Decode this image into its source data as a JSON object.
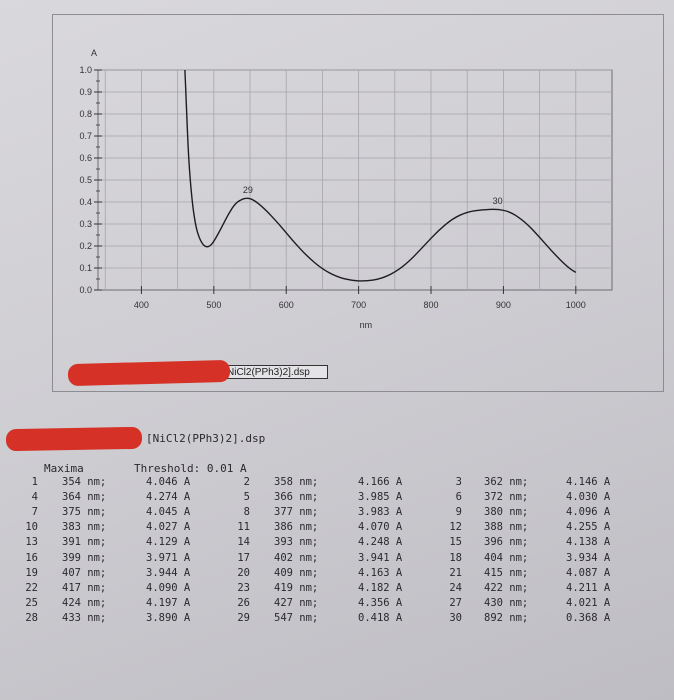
{
  "chart_data": {
    "type": "line",
    "xlabel": "nm",
    "ylabel": "A",
    "xlim": [
      340,
      1050
    ],
    "ylim": [
      0,
      1.0
    ],
    "x_ticks": [
      400,
      500,
      600,
      700,
      800,
      900,
      1000
    ],
    "y_ticks": [
      0.0,
      0.1,
      0.2,
      0.3,
      0.4,
      0.5,
      0.6,
      0.7,
      0.8,
      0.9,
      1.0
    ],
    "y_tick_labels": [
      "0.0",
      "0.1",
      "0.2",
      "0.3",
      "0.4",
      "0.5",
      "0.6",
      "0.7",
      "0.8",
      "0.9",
      "1.0"
    ],
    "grid": true,
    "series": [
      {
        "x": [
          460,
          462,
          465,
          470,
          475,
          480,
          485,
          490,
          495,
          500,
          510,
          520,
          530,
          540,
          547,
          555,
          570,
          590,
          610,
          630,
          650,
          670,
          690,
          710,
          730,
          750,
          770,
          790,
          810,
          830,
          850,
          870,
          892,
          910,
          930,
          950,
          970,
          990,
          1000
        ],
        "y": [
          1.0,
          0.85,
          0.6,
          0.4,
          0.29,
          0.235,
          0.205,
          0.195,
          0.2,
          0.22,
          0.28,
          0.345,
          0.395,
          0.415,
          0.418,
          0.41,
          0.37,
          0.3,
          0.22,
          0.15,
          0.095,
          0.06,
          0.043,
          0.04,
          0.05,
          0.08,
          0.13,
          0.2,
          0.27,
          0.325,
          0.355,
          0.365,
          0.368,
          0.355,
          0.31,
          0.24,
          0.165,
          0.1,
          0.08
        ]
      }
    ],
    "annotations": [
      {
        "text": "29",
        "x": 547,
        "y": 0.418
      },
      {
        "text": "30",
        "x": 892,
        "y": 0.368
      }
    ]
  },
  "file_box_label": "NiCl2(PPh3)2].dsp",
  "file_title": "[NiCl2(PPh3)2].dsp",
  "maxima_label": "Maxima",
  "threshold_label": "Threshold: 0.01 A",
  "peaks": [
    [
      {
        "n": "1",
        "nm": "354 nm;",
        "a": "4.046 A"
      },
      {
        "n": "2",
        "nm": "358 nm;",
        "a": "4.166 A"
      },
      {
        "n": "3",
        "nm": "362 nm;",
        "a": "4.146 A"
      }
    ],
    [
      {
        "n": "4",
        "nm": "364 nm;",
        "a": "4.274 A"
      },
      {
        "n": "5",
        "nm": "366 nm;",
        "a": "3.985 A"
      },
      {
        "n": "6",
        "nm": "372 nm;",
        "a": "4.030 A"
      }
    ],
    [
      {
        "n": "7",
        "nm": "375 nm;",
        "a": "4.045 A"
      },
      {
        "n": "8",
        "nm": "377 nm;",
        "a": "3.983 A"
      },
      {
        "n": "9",
        "nm": "380 nm;",
        "a": "4.096 A"
      }
    ],
    [
      {
        "n": "10",
        "nm": "383 nm;",
        "a": "4.027 A"
      },
      {
        "n": "11",
        "nm": "386 nm;",
        "a": "4.070 A"
      },
      {
        "n": "12",
        "nm": "388 nm;",
        "a": "4.255 A"
      }
    ],
    [
      {
        "n": "13",
        "nm": "391 nm;",
        "a": "4.129 A"
      },
      {
        "n": "14",
        "nm": "393 nm;",
        "a": "4.248 A"
      },
      {
        "n": "15",
        "nm": "396 nm;",
        "a": "4.138 A"
      }
    ],
    [
      {
        "n": "16",
        "nm": "399 nm;",
        "a": "3.971 A"
      },
      {
        "n": "17",
        "nm": "402 nm;",
        "a": "3.941 A"
      },
      {
        "n": "18",
        "nm": "404 nm;",
        "a": "3.934 A"
      }
    ],
    [
      {
        "n": "19",
        "nm": "407 nm;",
        "a": "3.944 A"
      },
      {
        "n": "20",
        "nm": "409 nm;",
        "a": "4.163 A"
      },
      {
        "n": "21",
        "nm": "415 nm;",
        "a": "4.087 A"
      }
    ],
    [
      {
        "n": "22",
        "nm": "417 nm;",
        "a": "4.090 A"
      },
      {
        "n": "23",
        "nm": "419 nm;",
        "a": "4.182 A"
      },
      {
        "n": "24",
        "nm": "422 nm;",
        "a": "4.211 A"
      }
    ],
    [
      {
        "n": "25",
        "nm": "424 nm;",
        "a": "4.197 A"
      },
      {
        "n": "26",
        "nm": "427 nm;",
        "a": "4.356 A"
      },
      {
        "n": "27",
        "nm": "430 nm;",
        "a": "4.021 A"
      }
    ],
    [
      {
        "n": "28",
        "nm": "433 nm;",
        "a": "3.890 A"
      },
      {
        "n": "29",
        "nm": "547 nm;",
        "a": "0.418 A"
      },
      {
        "n": "30",
        "nm": "892 nm;",
        "a": "0.368 A"
      }
    ]
  ]
}
